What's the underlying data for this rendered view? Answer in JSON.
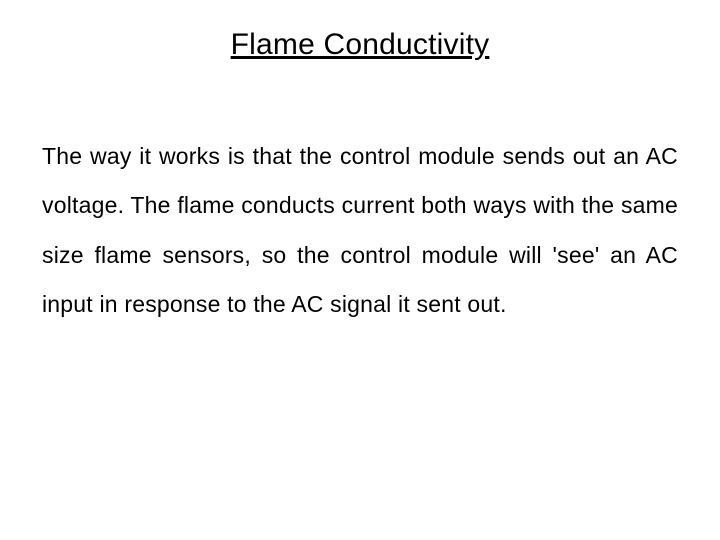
{
  "title": "Flame Conductivity",
  "body": "The way it works is that the control module sends out an AC voltage.  The flame conducts current both ways with the same size flame sensors, so the control module will 'see' an AC input in response to the AC signal it sent out.",
  "colors": {
    "background": "#ffffff",
    "text": "#000000"
  },
  "typography": {
    "title_fontsize": 30,
    "body_fontsize": 23,
    "title_underline": true,
    "body_align": "justify",
    "body_line_height": 2.15
  }
}
